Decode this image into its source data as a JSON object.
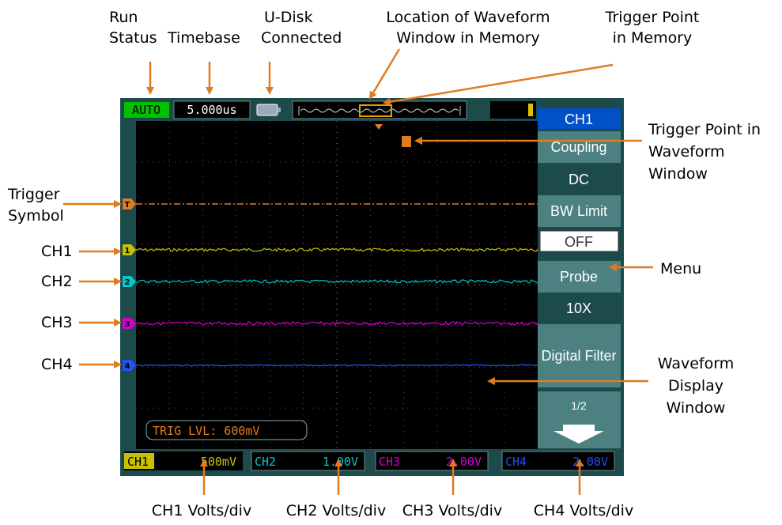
{
  "annotations": {
    "run_status": [
      "Run",
      "Status"
    ],
    "timebase": "Timebase",
    "u_disk": [
      "U-Disk",
      "Connected"
    ],
    "window_location": [
      "Location of Waveform",
      "Window in Memory"
    ],
    "trigger_memory": [
      "Trigger Point",
      "in Memory"
    ],
    "trigger_window": [
      "Trigger Point in",
      "Waveform",
      "Window"
    ],
    "trigger_symbol": [
      "Trigger",
      "Symbol"
    ],
    "channels": [
      "CH1",
      "CH2",
      "CH3",
      "CH4"
    ],
    "menu": "Menu",
    "display_window": [
      "Waveform",
      "Display",
      "Window"
    ],
    "volts_div": [
      "CH1 Volts/div",
      "CH2 Volts/div",
      "CH3 Volts/div",
      "CH4 Volts/div"
    ]
  },
  "screen": {
    "run_status": "AUTO",
    "timebase": "5.000us",
    "menu": {
      "title": "CH1",
      "items": [
        "Coupling",
        "DC",
        "BW Limit",
        "OFF",
        "Probe",
        "10X",
        "Digital Filter",
        "1/2"
      ]
    },
    "trigger_level": "TRIG LVL: 600mV",
    "markers": {
      "trigger": "T",
      "channels": [
        "1",
        "2",
        "3",
        "4"
      ]
    },
    "channels": [
      {
        "name": "CH1",
        "scale": "500mV"
      },
      {
        "name": "CH2",
        "scale": "1.00V"
      },
      {
        "name": "CH3",
        "scale": "2.00V"
      },
      {
        "name": "CH4",
        "scale": "2.00V"
      }
    ]
  }
}
